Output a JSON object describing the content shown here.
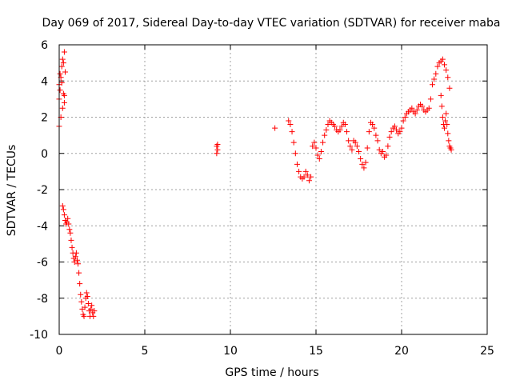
{
  "chart_data": {
    "type": "scatter",
    "title": "Day 069 of 2017, Sidereal Day-to-day VTEC variation (SDTVAR) for receiver maba",
    "xlabel": "GPS time / hours",
    "ylabel": "SDTVAR / TECUs",
    "xlim": [
      0,
      25
    ],
    "ylim": [
      -10,
      6
    ],
    "xticks": [
      0,
      5,
      10,
      15,
      20,
      25
    ],
    "yticks": [
      -10,
      -8,
      -6,
      -4,
      -2,
      0,
      2,
      4,
      6
    ],
    "grid": true,
    "marker": "+",
    "series_color": "#ff0000",
    "series": [
      {
        "name": "SDTVAR",
        "x": [
          0.0,
          0.05,
          0.1,
          0.15,
          0.2,
          0.25,
          0.3,
          0.35,
          0.0,
          0.1,
          0.2,
          0.3,
          0.0,
          0.05,
          0.15,
          0.25,
          0.3,
          0.2,
          0.25,
          0.3,
          0.35,
          0.4,
          0.45,
          0.5,
          0.55,
          0.6,
          0.65,
          0.7,
          0.75,
          0.8,
          0.85,
          0.9,
          0.95,
          1.0,
          1.05,
          1.1,
          1.15,
          1.2,
          1.25,
          1.3,
          1.35,
          1.4,
          1.45,
          1.5,
          1.55,
          1.6,
          1.65,
          1.7,
          1.75,
          1.8,
          1.85,
          1.9,
          1.95,
          2.0,
          2.05,
          9.2,
          9.2,
          9.25,
          9.25,
          12.6,
          13.4,
          13.5,
          13.6,
          13.7,
          13.8,
          13.9,
          14.0,
          14.1,
          14.2,
          14.3,
          14.4,
          14.5,
          14.6,
          14.7,
          14.8,
          14.9,
          15.0,
          15.1,
          15.2,
          15.3,
          15.4,
          15.5,
          15.6,
          15.7,
          15.8,
          15.9,
          16.0,
          16.1,
          16.2,
          16.3,
          16.4,
          16.5,
          16.6,
          16.7,
          16.8,
          16.9,
          17.0,
          17.1,
          17.2,
          17.3,
          17.4,
          17.5,
          17.6,
          17.7,
          17.8,
          17.9,
          18.0,
          18.1,
          18.2,
          18.3,
          18.4,
          18.5,
          18.6,
          18.7,
          18.8,
          18.9,
          19.0,
          19.1,
          19.2,
          19.3,
          19.4,
          19.5,
          19.6,
          19.7,
          19.8,
          19.9,
          20.0,
          20.1,
          20.2,
          20.3,
          20.4,
          20.5,
          20.6,
          20.7,
          20.8,
          20.9,
          21.0,
          21.1,
          21.2,
          21.3,
          21.4,
          21.5,
          21.6,
          21.7,
          21.8,
          21.9,
          22.0,
          22.1,
          22.2,
          22.3,
          22.4,
          22.5,
          22.6,
          22.7,
          22.8,
          22.3,
          22.35,
          22.4,
          22.45,
          22.5,
          22.55,
          22.6,
          22.65,
          22.7,
          22.75,
          22.8,
          22.85,
          22.9
        ],
        "y": [
          3.0,
          3.5,
          4.2,
          4.8,
          5.2,
          5.0,
          5.6,
          4.5,
          1.5,
          2.0,
          2.5,
          3.2,
          3.8,
          4.4,
          3.9,
          3.3,
          2.8,
          -2.9,
          -3.1,
          -3.4,
          -3.7,
          -3.9,
          -3.8,
          -3.6,
          -3.9,
          -4.2,
          -4.4,
          -4.8,
          -5.2,
          -5.5,
          -5.8,
          -6.0,
          -5.7,
          -5.5,
          -5.9,
          -6.1,
          -6.6,
          -7.2,
          -7.8,
          -8.2,
          -8.6,
          -8.9,
          -9.0,
          -8.5,
          -8.0,
          -7.7,
          -7.9,
          -8.3,
          -8.7,
          -9.0,
          -8.6,
          -8.4,
          -8.8,
          -9.0,
          -8.7,
          0.0,
          0.4,
          0.5,
          0.2,
          1.4,
          1.8,
          1.6,
          1.2,
          0.6,
          0.0,
          -0.6,
          -1.0,
          -1.3,
          -1.4,
          -1.3,
          -1.0,
          -1.2,
          -1.5,
          -1.3,
          0.4,
          0.6,
          0.3,
          -0.1,
          -0.3,
          0.1,
          0.6,
          1.0,
          1.3,
          1.6,
          1.8,
          1.7,
          1.6,
          1.5,
          1.3,
          1.2,
          1.3,
          1.5,
          1.7,
          1.6,
          1.2,
          0.7,
          0.4,
          0.2,
          0.7,
          0.6,
          0.4,
          0.1,
          -0.3,
          -0.6,
          -0.8,
          -0.5,
          0.3,
          1.2,
          1.7,
          1.6,
          1.4,
          1.0,
          0.7,
          0.2,
          0.0,
          0.1,
          -0.2,
          -0.1,
          0.4,
          0.9,
          1.2,
          1.4,
          1.5,
          1.3,
          1.1,
          1.2,
          1.4,
          1.8,
          2.0,
          2.2,
          2.3,
          2.4,
          2.5,
          2.3,
          2.2,
          2.4,
          2.6,
          2.7,
          2.6,
          2.4,
          2.3,
          2.4,
          2.5,
          3.0,
          3.8,
          4.1,
          4.4,
          4.8,
          5.0,
          5.1,
          5.2,
          4.9,
          4.6,
          4.2,
          3.6,
          3.2,
          2.6,
          2.0,
          1.6,
          1.4,
          1.8,
          2.2,
          1.6,
          1.1,
          0.7,
          0.4,
          0.3,
          0.2
        ]
      }
    ]
  }
}
